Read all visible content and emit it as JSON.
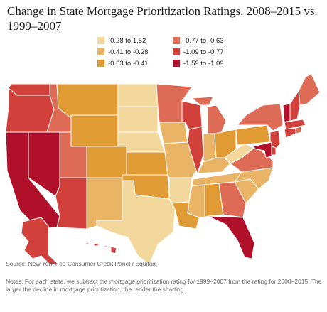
{
  "title": "Change in State Mortgage Prioritization Ratings, 2008–2015 vs. 1999–2007",
  "legend": [
    {
      "label": "-0.28 to  1.52",
      "color": "#f3d89d"
    },
    {
      "label": "-0.41 to -0.28",
      "color": "#e9b465"
    },
    {
      "label": "-0.63 to -0.41",
      "color": "#e09b34"
    },
    {
      "label": "-0.77 to -0.63",
      "color": "#de6b55"
    },
    {
      "label": "-1.09 to -0.77",
      "color": "#d1403a"
    },
    {
      "label": "-1.59 to -1.09",
      "color": "#b0102a"
    }
  ],
  "source": "Source: New York Fed Consumer Credit Panel / Equifax.",
  "notes": "Notes: For each state, we subtract the mortgage prioritization rating for 1999–2007 from the rating for 2008–2015. The larger the decline in mortgage prioritization, the redder the shading.",
  "map_data": {
    "WA": 4,
    "OR": 4,
    "CA": 5,
    "NV": 5,
    "ID": 3,
    "MT": 2,
    "WY": 2,
    "UT": 3,
    "AZ": 4,
    "CO": 2,
    "NM": 1,
    "ND": 0,
    "SD": 0,
    "NE": 0,
    "KS": 2,
    "OK": 2,
    "TX": 0,
    "MN": 3,
    "IA": 1,
    "MO": 1,
    "AR": 0,
    "LA": 2,
    "WI": 4,
    "IL": 4,
    "MI": 3,
    "IN": 1,
    "OH": 2,
    "KY": 1,
    "TN": 1,
    "MS": 1,
    "AL": 2,
    "GA": 3,
    "FL": 5,
    "SC": 1,
    "NC": 1,
    "VA": 3,
    "WV": 0,
    "PA": 2,
    "NY": 3,
    "ME": 3,
    "VT": 5,
    "NH": 4,
    "MA": 4,
    "RI": 3,
    "CT": 4,
    "NJ": 4,
    "DE": 4,
    "MD": 5,
    "AK": 4,
    "HI": 4
  }
}
